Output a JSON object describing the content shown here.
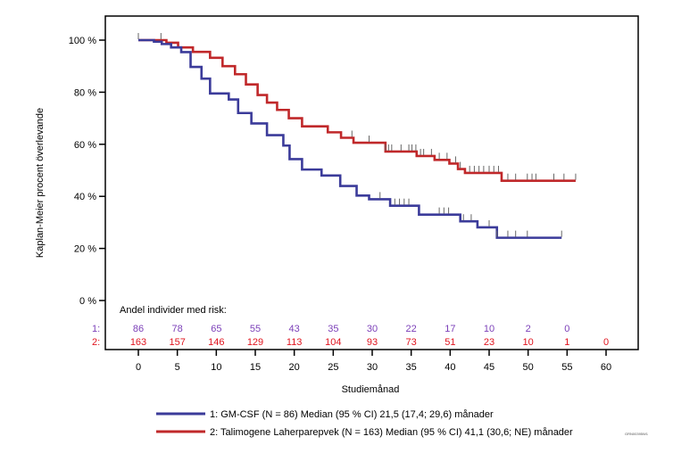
{
  "chart_data": {
    "type": "line",
    "subtype": "kaplan-meier step",
    "ylabel": "Kaplan-Meier procent överlevande",
    "xlabel": "Studiemånad",
    "xlim": [
      0,
      60
    ],
    "ylim": [
      0,
      100
    ],
    "x_ticks": [
      0,
      5,
      10,
      15,
      20,
      25,
      30,
      35,
      40,
      45,
      50,
      55,
      60
    ],
    "y_ticks": [
      0,
      20,
      40,
      60,
      80,
      100
    ],
    "y_tick_labels": [
      "0 %",
      "20 %",
      "40 %",
      "60 %",
      "80 %",
      "100 %"
    ],
    "grid": false,
    "legend_position": "bottom",
    "series": [
      {
        "name": "1: GM-CSF (N = 86) Median (95 % CI) 21,5 (17,4; 29,6) månader",
        "color": "#3b3b9a",
        "steps": [
          [
            0,
            100
          ],
          [
            2.0,
            99.4
          ],
          [
            3.0,
            98.5
          ],
          [
            4.2,
            97.2
          ],
          [
            5.5,
            95.4
          ],
          [
            6.7,
            89.7
          ],
          [
            8.1,
            85.2
          ],
          [
            9.2,
            79.5
          ],
          [
            11.6,
            77.2
          ],
          [
            12.8,
            72
          ],
          [
            14.5,
            68
          ],
          [
            16.5,
            63.5
          ],
          [
            18.6,
            59.5
          ],
          [
            19.4,
            54.3
          ],
          [
            21.0,
            50.3
          ],
          [
            23.5,
            48
          ],
          [
            25.9,
            44
          ],
          [
            28.0,
            40.3
          ],
          [
            29.6,
            38.9
          ],
          [
            32.3,
            36.4
          ],
          [
            36.0,
            33
          ],
          [
            41.3,
            30.4
          ],
          [
            43.5,
            28.1
          ],
          [
            46.0,
            24.1
          ]
        ],
        "end": 54.3,
        "censored": [
          31.0,
          32.9,
          33.5,
          34.1,
          34.7,
          38.6,
          39.2,
          39.8,
          41.7,
          42.7,
          45.0,
          46.0,
          47.4,
          48.4,
          49.9,
          54.3
        ]
      },
      {
        "name": "2: Talimogene Laherparepvek (N = 163) Median (95 % CI) 41,1 (30,6; NE) månader",
        "color": "#c0282a",
        "steps": [
          [
            0,
            100
          ],
          [
            3.6,
            99
          ],
          [
            5.1,
            97.2
          ],
          [
            7.0,
            95.5
          ],
          [
            9.2,
            93.2
          ],
          [
            10.8,
            90
          ],
          [
            12.4,
            86.9
          ],
          [
            13.8,
            83
          ],
          [
            15.3,
            78.9
          ],
          [
            16.5,
            76
          ],
          [
            17.8,
            73.2
          ],
          [
            19.3,
            70
          ],
          [
            21.0,
            66.9
          ],
          [
            24.3,
            64.6
          ],
          [
            26.0,
            62.5
          ],
          [
            27.6,
            60.6
          ],
          [
            31.7,
            57.2
          ],
          [
            35.7,
            55.5
          ],
          [
            38.0,
            54
          ],
          [
            39.9,
            52.6
          ],
          [
            41.0,
            50.5
          ],
          [
            41.9,
            49
          ],
          [
            46.6,
            46.0
          ]
        ],
        "end": 56.1,
        "censored": [
          0,
          2.9,
          27.4,
          29.6,
          31.7,
          32.1,
          32.5,
          33.7,
          34.7,
          35.1,
          35.6,
          36.2,
          36.6,
          37.6,
          38.6,
          39.6,
          40.7,
          41.3,
          42.5,
          43.1,
          43.7,
          44.3,
          45.0,
          45.6,
          46.2,
          47.4,
          48.4,
          49.9,
          50.5,
          51.0,
          53.3,
          54.6,
          56.1
        ]
      }
    ],
    "risk_table": {
      "title": "Andel individer med risk:",
      "times": [
        0,
        5,
        10,
        15,
        20,
        25,
        30,
        35,
        40,
        45,
        50,
        55,
        60
      ],
      "rows": [
        {
          "label": "1:",
          "color": "#7b3fb8",
          "values": [
            "86",
            "78",
            "65",
            "55",
            "43",
            "35",
            "30",
            "22",
            "17",
            "10",
            "2",
            "0"
          ]
        },
        {
          "label": "2:",
          "color": "#e0141e",
          "values": [
            "163",
            "157",
            "146",
            "129",
            "113",
            "104",
            "93",
            "73",
            "51",
            "23",
            "10",
            "1",
            "0"
          ]
        }
      ]
    },
    "footnote_code": "GRN00395W1"
  }
}
